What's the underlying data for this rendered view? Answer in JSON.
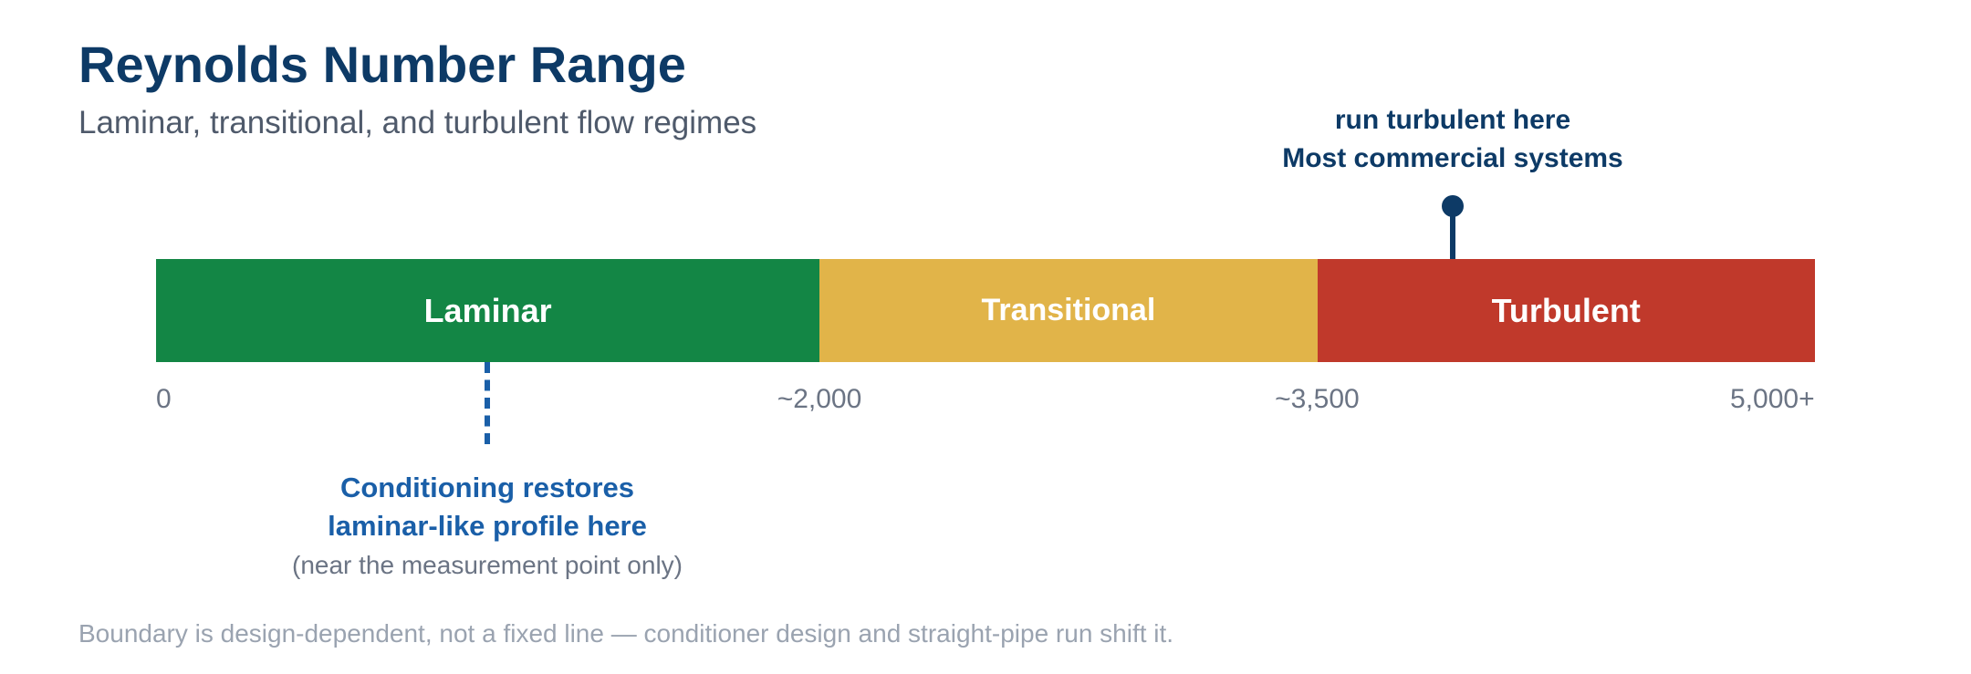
{
  "header": {
    "title": "Reynolds Number Range",
    "subtitle": "Laminar, transitional, and turbulent flow regimes"
  },
  "scale": {
    "min": 0,
    "max": 5000,
    "segments": [
      {
        "label": "Laminar",
        "start": 0,
        "end": 2000,
        "color": "#138645"
      },
      {
        "label": "Transitional",
        "start": 2000,
        "end": 3500,
        "color": "#e1b449"
      },
      {
        "label": "Turbulent",
        "start": 3500,
        "end": 5000,
        "color": "#c0392b"
      }
    ],
    "ticks": [
      {
        "label": "0",
        "value": 0
      },
      {
        "label": "~2,000",
        "value": 2000
      },
      {
        "label": "~3,500",
        "value": 3500
      },
      {
        "label": "5,000+",
        "value": 5000
      }
    ]
  },
  "callout_turbulent": {
    "value": 3900,
    "line1": "run turbulent here",
    "line2": "Most commercial systems",
    "color": "#0d3a66"
  },
  "callout_conditioning": {
    "value": 1000,
    "line1": "Conditioning restores",
    "line2": "laminar-like profile here",
    "note": "(near the measurement point only)",
    "color": "#1a5fa8"
  },
  "footnote": "Boundary is design-dependent, not a fixed line — conditioner design and straight-pipe run shift it."
}
